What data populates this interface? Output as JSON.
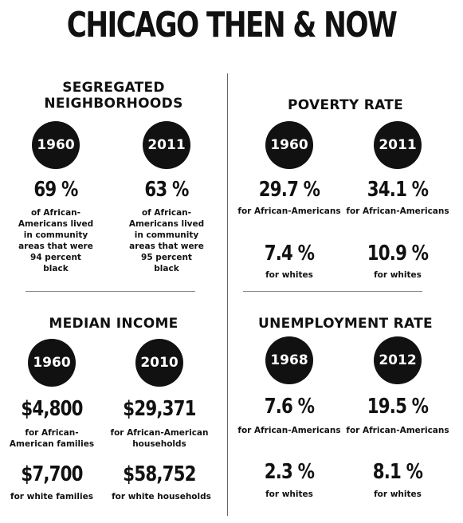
{
  "title": "CHICAGO THEN & NOW",
  "segregated": {
    "heading_line1": "SEGREGATED",
    "heading_line2": "NEIGHBORHOODS",
    "left": {
      "year": "1960",
      "value": "69 %",
      "caption": [
        "of African-",
        "Americans lived",
        "in community",
        "areas that were",
        "94 percent",
        "black"
      ]
    },
    "right": {
      "year": "2011",
      "value": "63 %",
      "caption": [
        "of African-",
        "Americans lived",
        "in community",
        "areas that were",
        "95 percent",
        "black"
      ]
    }
  },
  "poverty": {
    "heading": "POVERTY RATE",
    "left": {
      "year": "1960",
      "value1": "29.7 %",
      "caption1": "for African-Americans",
      "value2": "7.4 %",
      "caption2": "for whites"
    },
    "right": {
      "year": "2011",
      "value1": "34.1 %",
      "caption1": "for African-Americans",
      "value2": "10.9 %",
      "caption2": "for whites"
    }
  },
  "income": {
    "heading": "MEDIAN INCOME",
    "left": {
      "year": "1960",
      "value1": "$4,800",
      "caption1_line1": "for African-",
      "caption1_line2": "American families",
      "value2": "$7,700",
      "caption2": "for white families"
    },
    "right": {
      "year": "2010",
      "value1": "$29,371",
      "caption1_line1": "for African-American",
      "caption1_line2": "households",
      "value2": "$58,752",
      "caption2": "for white households"
    }
  },
  "unemployment": {
    "heading": "UNEMPLOYMENT RATE",
    "left": {
      "year": "1968",
      "value1": "7.6 %",
      "caption1": "for African-Americans",
      "value2": "2.3 %",
      "caption2": "for whites"
    },
    "right": {
      "year": "2012",
      "value1": "19.5 %",
      "caption1": "for African-Americans",
      "value2": "8.1 %",
      "caption2": "for whites"
    }
  }
}
